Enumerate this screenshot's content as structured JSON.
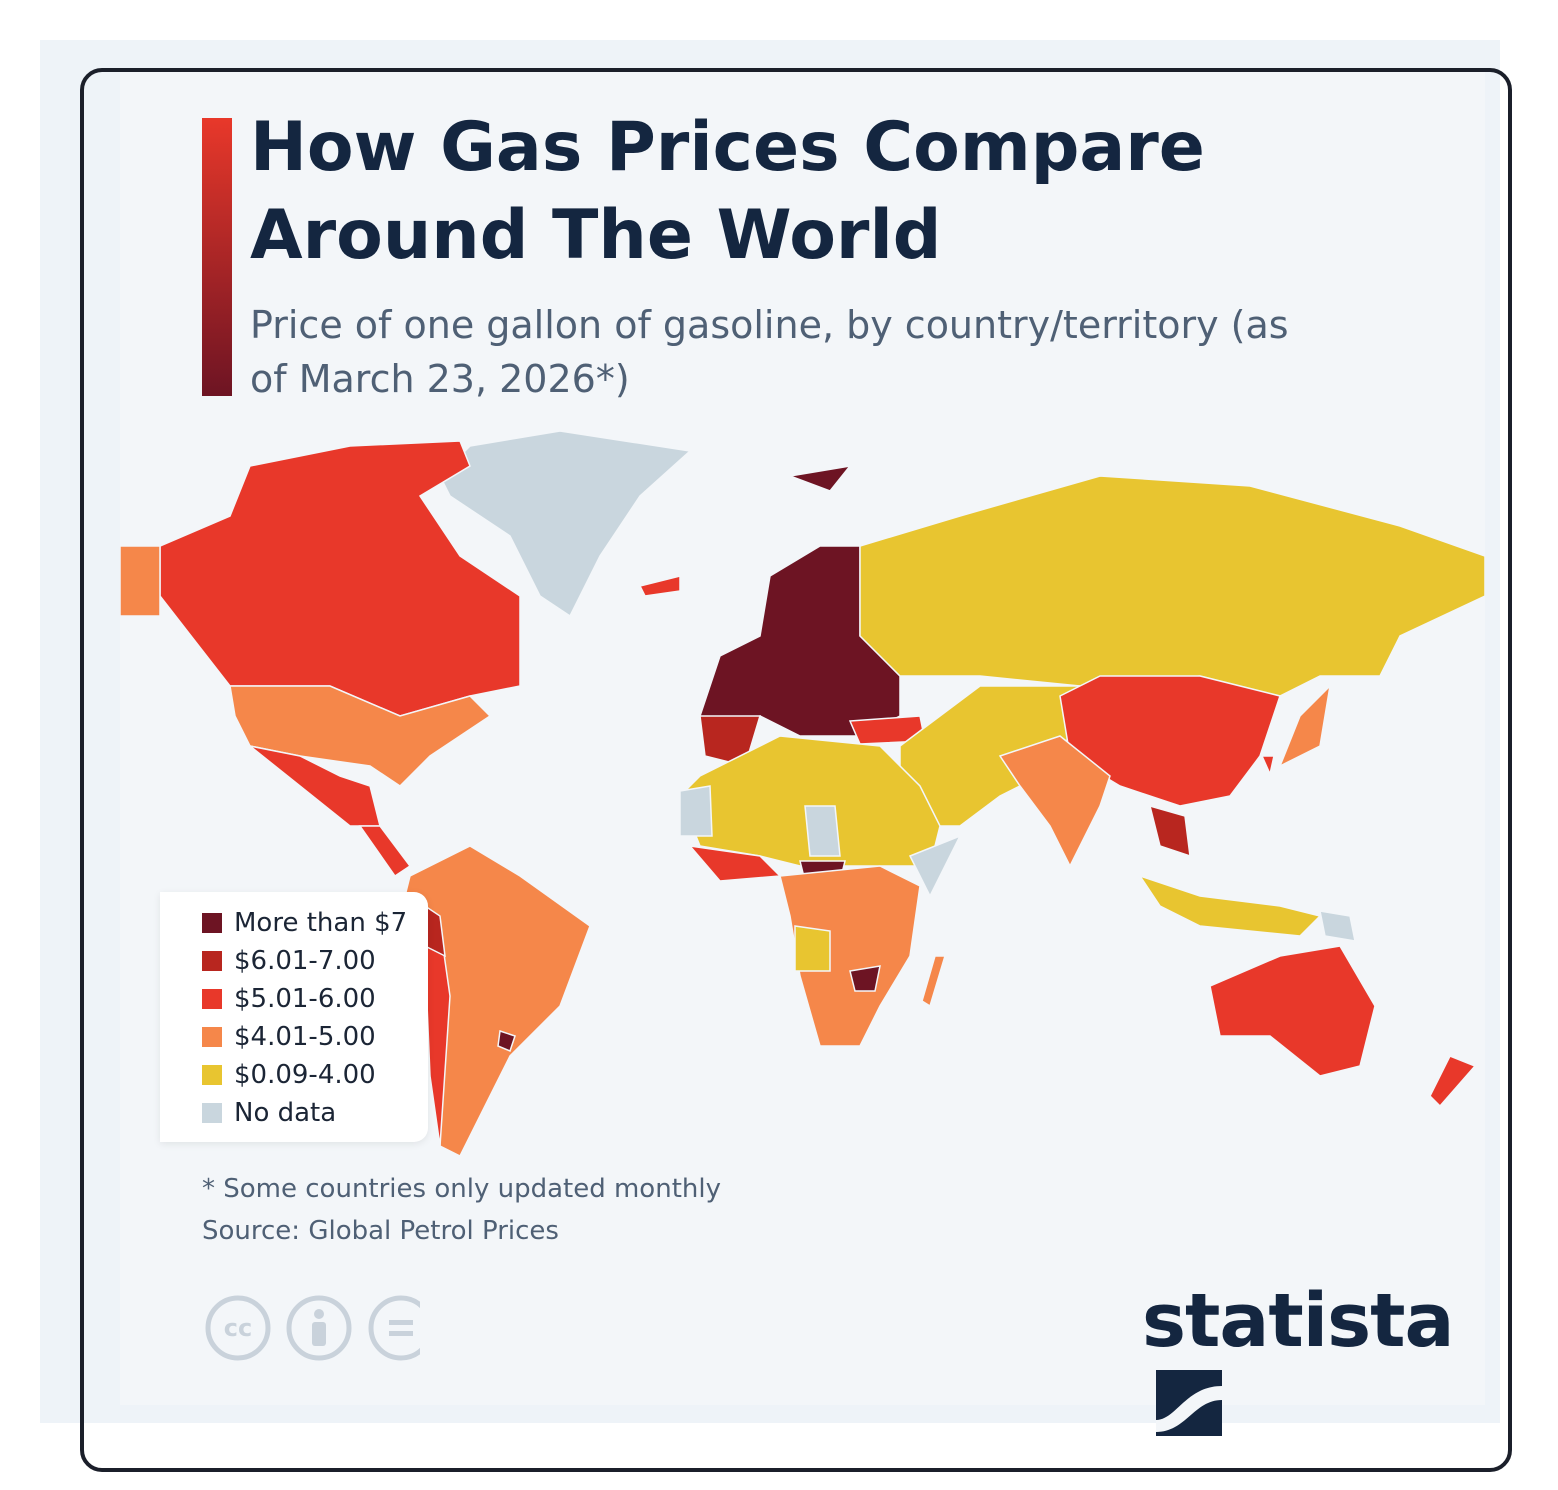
{
  "header": {
    "title": "How Gas Prices Compare Around The World",
    "subtitle": "Price of one gallon of gasoline, by country/territory (as of March 23, 2026*)"
  },
  "legend": [
    {
      "label": "More than $7",
      "color": "#6d1423"
    },
    {
      "label": "$6.01-7.00",
      "color": "#b8261f"
    },
    {
      "label": "$5.01-6.00",
      "color": "#e8382a"
    },
    {
      "label": "$4.01-5.00",
      "color": "#f5874a"
    },
    {
      "label": "$0.09-4.00",
      "color": "#e8c530"
    },
    {
      "label": "No data",
      "color": "#c9d6de"
    }
  ],
  "notes": {
    "footnote": "* Some countries only updated monthly",
    "source": "Source: Global Petrol Prices"
  },
  "brand": "statista"
}
